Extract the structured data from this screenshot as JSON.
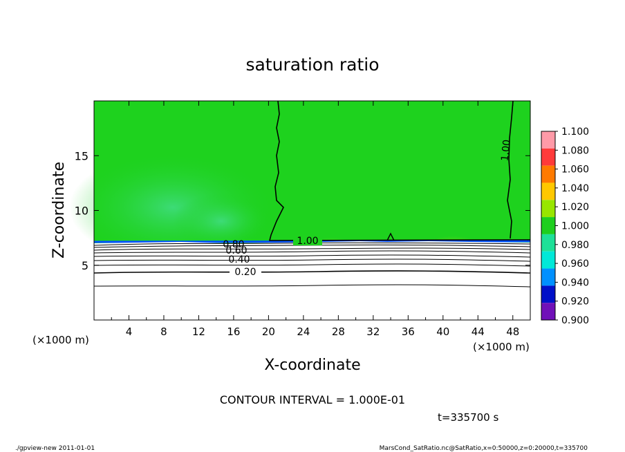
{
  "chart_data": {
    "type": "heatmap",
    "title": "saturation ratio",
    "xlabel": "X-coordinate",
    "ylabel": "Z-coordinate",
    "x_unit_left": "(×1000 m)",
    "x_unit_right": "(×1000 m)",
    "xlim": [
      0,
      50
    ],
    "ylim": [
      0,
      20
    ],
    "x_ticks": [
      "4",
      "8",
      "12",
      "16",
      "20",
      "24",
      "28",
      "32",
      "36",
      "40",
      "44",
      "48"
    ],
    "y_ticks": [
      "5",
      "10",
      "15"
    ],
    "colorbar": {
      "labels": [
        "1.100",
        "1.080",
        "1.060",
        "1.040",
        "1.020",
        "1.000",
        "0.980",
        "0.960",
        "0.940",
        "0.920",
        "0.900"
      ],
      "colors": [
        "#ff9aa8",
        "#ff3a3a",
        "#ff7a00",
        "#ffc800",
        "#98e600",
        "#1ecf1e",
        "#1ee098",
        "#00e8d8",
        "#0090ff",
        "#0010c8",
        "#7010b8"
      ]
    },
    "contour_labels": [
      "0.80",
      "0.60",
      "0.40",
      "0.20",
      "1.00",
      "1.00"
    ],
    "contour_interval_text": "CONTOUR INTERVAL = 1.000E-01",
    "time_text": "t=335700 s",
    "colors": {
      "field_main": "#1ed21e",
      "field_light": "#3ee078",
      "below_cloud": "#ffffff",
      "warm_patch": "#d8e010"
    }
  },
  "footer": {
    "left": "./gpview-new  2011-01-01",
    "right": "MarsCond_SatRatio.nc@SatRatio,x=0:50000,z=0:20000,t=335700"
  }
}
